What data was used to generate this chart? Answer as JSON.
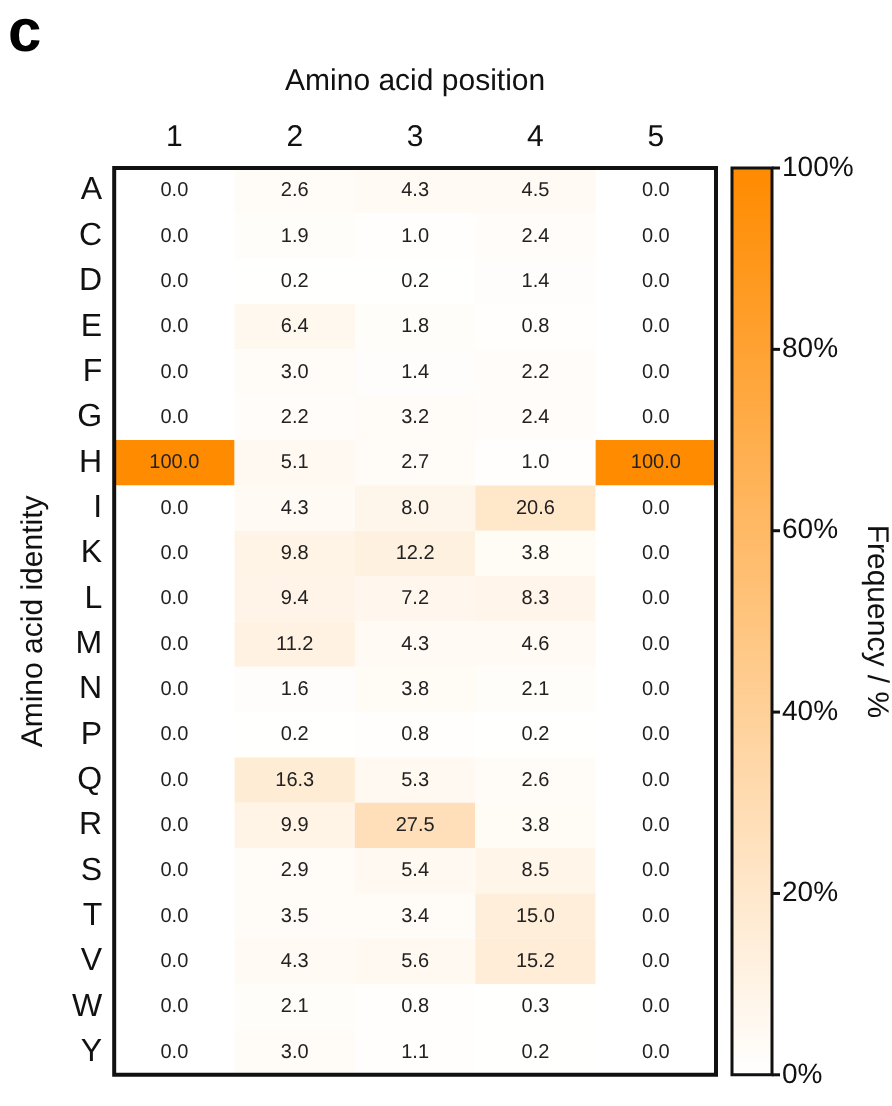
{
  "chart_data": {
    "type": "heatmap",
    "xlabel": "Amino acid position",
    "ylabel": "Amino acid identity",
    "clabel": "Frequency / %",
    "annotations": [
      "c"
    ],
    "categories": [
      "1",
      "2",
      "3",
      "4",
      "5"
    ],
    "y_categories": [
      "A",
      "C",
      "D",
      "E",
      "F",
      "G",
      "H",
      "I",
      "K",
      "L",
      "M",
      "N",
      "P",
      "Q",
      "R",
      "S",
      "T",
      "V",
      "W",
      "Y"
    ],
    "cells": [
      [
        0,
        2.6,
        4.3,
        4.5,
        0
      ],
      [
        0,
        1.9,
        1.0,
        2.4,
        0
      ],
      [
        0,
        0.2,
        0.2,
        1.4,
        0
      ],
      [
        0,
        6.4,
        1.8,
        0.8,
        0
      ],
      [
        0,
        3.0,
        1.4,
        2.2,
        0
      ],
      [
        0,
        2.2,
        3.2,
        2.4,
        0
      ],
      [
        100,
        5.1,
        2.7,
        1.0,
        100
      ],
      [
        0,
        4.3,
        8.0,
        20.6,
        0
      ],
      [
        0,
        9.8,
        12.2,
        3.8,
        0
      ],
      [
        0,
        9.4,
        7.2,
        8.3,
        0
      ],
      [
        0,
        11.2,
        4.3,
        4.6,
        0
      ],
      [
        0,
        1.6,
        3.8,
        2.1,
        0
      ],
      [
        0,
        0.2,
        0.8,
        0.2,
        0
      ],
      [
        0,
        16.3,
        5.3,
        2.6,
        0
      ],
      [
        0,
        9.9,
        27.5,
        3.8,
        0
      ],
      [
        0,
        2.9,
        5.4,
        8.5,
        0
      ],
      [
        0,
        3.5,
        3.4,
        15.0,
        0
      ],
      [
        0,
        4.3,
        5.6,
        15.2,
        0
      ],
      [
        0,
        2.1,
        0.8,
        0.3,
        0
      ],
      [
        0,
        3.0,
        1.1,
        0.2,
        0
      ]
    ],
    "cell_labels": [
      [
        "0.0",
        "2.6",
        "4.3",
        "4.5",
        "0.0"
      ],
      [
        "0.0",
        "1.9",
        "1.0",
        "2.4",
        "0.0"
      ],
      [
        "0.0",
        "0.2",
        "0.2",
        "1.4",
        "0.0"
      ],
      [
        "0.0",
        "6.4",
        "1.8",
        "0.8",
        "0.0"
      ],
      [
        "0.0",
        "3.0",
        "1.4",
        "2.2",
        "0.0"
      ],
      [
        "0.0",
        "2.2",
        "3.2",
        "2.4",
        "0.0"
      ],
      [
        "100.0",
        "5.1",
        "2.7",
        "1.0",
        "100.0"
      ],
      [
        "0.0",
        "4.3",
        "8.0",
        "20.6",
        "0.0"
      ],
      [
        "0.0",
        "9.8",
        "12.2",
        "3.8",
        "0.0"
      ],
      [
        "0.0",
        "9.4",
        "7.2",
        "8.3",
        "0.0"
      ],
      [
        "0.0",
        "11.2",
        "4.3",
        "4.6",
        "0.0"
      ],
      [
        "0.0",
        "1.6",
        "3.8",
        "2.1",
        "0.0"
      ],
      [
        "0.0",
        "0.2",
        "0.8",
        "0.2",
        "0.0"
      ],
      [
        "0.0",
        "16.3",
        "5.3",
        "2.6",
        "0.0"
      ],
      [
        "0.0",
        "9.9",
        "27.5",
        "3.8",
        "0.0"
      ],
      [
        "0.0",
        "2.9",
        "5.4",
        "8.5",
        "0.0"
      ],
      [
        "0.0",
        "3.5",
        "3.4",
        "15.0",
        "0.0"
      ],
      [
        "0.0",
        "4.3",
        "5.6",
        "15.2",
        "0.0"
      ],
      [
        "0.0",
        "2.1",
        "0.8",
        "0.3",
        "0.0"
      ],
      [
        "0.0",
        "3.0",
        "1.1",
        "0.2",
        "0.0"
      ]
    ],
    "data_labels": true,
    "clim": [
      0,
      100
    ],
    "cticks": [
      {
        "value": 0,
        "label": "0%"
      },
      {
        "value": 20,
        "label": "20%"
      },
      {
        "value": 40,
        "label": "40%"
      },
      {
        "value": 60,
        "label": "60%"
      },
      {
        "value": 80,
        "label": "80%"
      },
      {
        "value": 100,
        "label": "100%"
      }
    ],
    "legend": false
  }
}
